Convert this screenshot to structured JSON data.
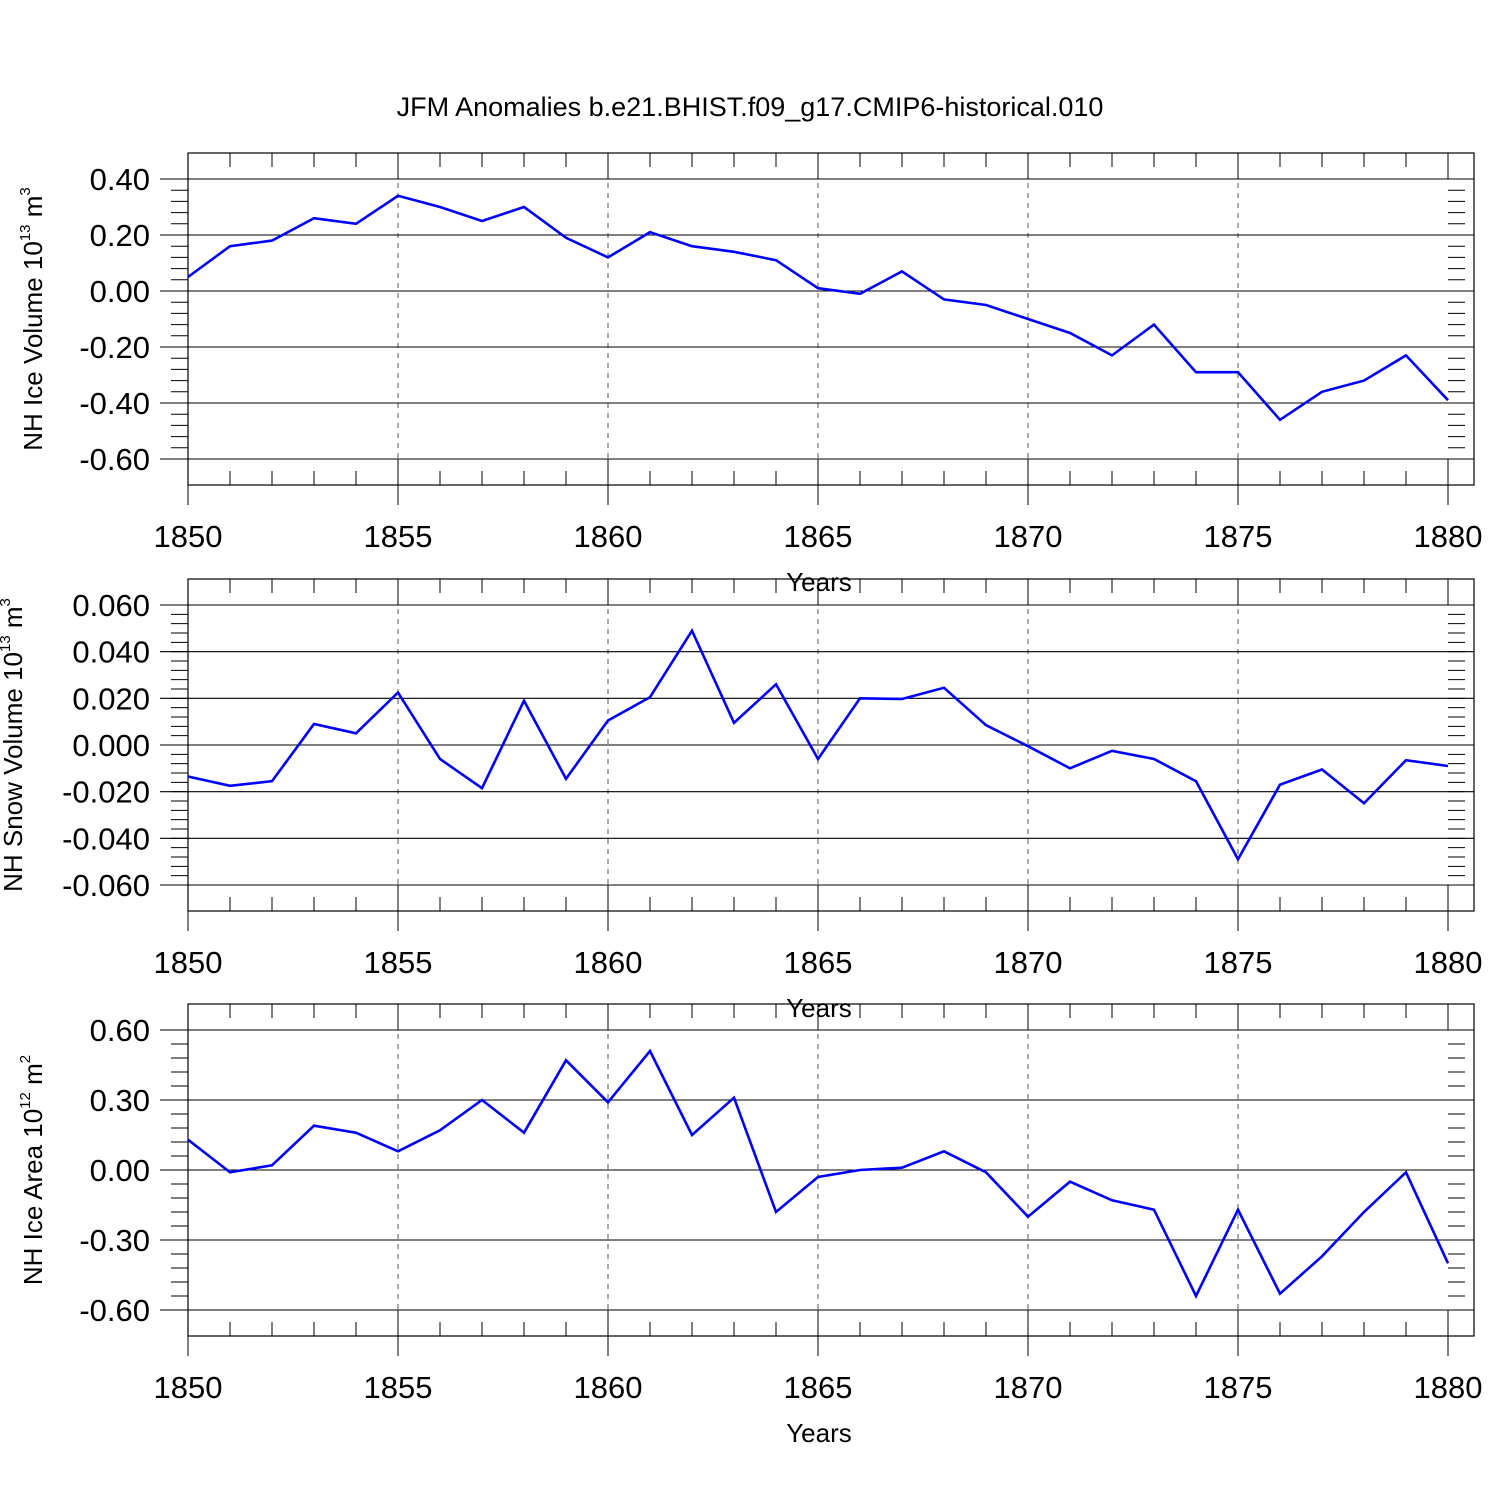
{
  "title": "JFM Anomalies b.e21.BHIST.f09_g17.CMIP6-historical.010",
  "colors": {
    "series": "#0000ff",
    "axis": "#000000",
    "grid": "#555555"
  },
  "chart_data": [
    {
      "type": "line",
      "ylabel": {
        "base": "NH Ice Volume 10",
        "exp": "13",
        "unit": " m",
        "unit_exp": "3"
      },
      "xlabel": "Years",
      "xlim": [
        1850,
        1880
      ],
      "ylim": [
        -0.6,
        0.4
      ],
      "xticks": [
        1850,
        1855,
        1860,
        1865,
        1870,
        1875,
        1880
      ],
      "xtick_labels": [
        "1850",
        "1855",
        "1860",
        "1865",
        "1870",
        "1875",
        "1880"
      ],
      "yticks": [
        0.4,
        0.2,
        0.0,
        -0.2,
        -0.4,
        -0.6
      ],
      "ytick_labels": [
        "0.40",
        "0.20",
        "0.00",
        "-0.20",
        "-0.40",
        "-0.60"
      ],
      "grid": "vertical dashed at labeled years",
      "x": [
        1850,
        1851,
        1852,
        1853,
        1854,
        1855,
        1856,
        1857,
        1858,
        1859,
        1860,
        1861,
        1862,
        1863,
        1864,
        1865,
        1866,
        1867,
        1868,
        1869,
        1870,
        1871,
        1872,
        1873,
        1874,
        1875,
        1876,
        1877,
        1878,
        1879,
        1880
      ],
      "y": [
        0.05,
        0.16,
        0.18,
        0.26,
        0.24,
        0.34,
        0.3,
        0.25,
        0.3,
        0.19,
        0.12,
        0.21,
        0.16,
        0.14,
        0.11,
        0.01,
        -0.01,
        0.07,
        -0.03,
        -0.05,
        -0.1,
        -0.15,
        -0.23,
        -0.12,
        -0.29,
        -0.29,
        -0.46,
        -0.36,
        -0.32,
        -0.23,
        -0.39
      ]
    },
    {
      "type": "line",
      "ylabel": {
        "base": "NH Snow Volume 10",
        "exp": "13",
        "unit": " m",
        "unit_exp": "3"
      },
      "xlabel": "Years",
      "xlim": [
        1850,
        1880
      ],
      "ylim": [
        -0.06,
        0.06
      ],
      "xticks": [
        1850,
        1855,
        1860,
        1865,
        1870,
        1875,
        1880
      ],
      "xtick_labels": [
        "1850",
        "1855",
        "1860",
        "1865",
        "1870",
        "1875",
        "1880"
      ],
      "yticks": [
        0.06,
        0.04,
        0.02,
        0.0,
        -0.02,
        -0.04,
        -0.06
      ],
      "ytick_labels": [
        "0.060",
        "0.040",
        "0.020",
        "0.000",
        "-0.020",
        "-0.040",
        "-0.060"
      ],
      "grid": "vertical dashed at labeled years",
      "x": [
        1850,
        1851,
        1852,
        1853,
        1854,
        1855,
        1856,
        1857,
        1858,
        1859,
        1860,
        1861,
        1862,
        1863,
        1864,
        1865,
        1866,
        1867,
        1868,
        1869,
        1870,
        1871,
        1872,
        1873,
        1874,
        1875,
        1876,
        1877,
        1878,
        1879,
        1880
      ],
      "y": [
        -0.0135,
        -0.0175,
        -0.0155,
        0.009,
        0.005,
        0.0225,
        -0.006,
        -0.0185,
        0.019,
        -0.0145,
        0.0105,
        0.0205,
        0.049,
        0.0095,
        0.026,
        -0.006,
        0.02,
        0.0197,
        0.0245,
        0.0085,
        -0.0005,
        -0.01,
        -0.0025,
        -0.006,
        -0.0155,
        -0.049,
        -0.017,
        -0.0105,
        -0.025,
        -0.0065,
        -0.009
      ]
    },
    {
      "type": "line",
      "ylabel": {
        "base": "NH Ice Area 10",
        "exp": "12",
        "unit": " m",
        "unit_exp": "2"
      },
      "xlabel": "Years",
      "xlim": [
        1850,
        1880
      ],
      "ylim": [
        -0.6,
        0.6
      ],
      "xticks": [
        1850,
        1855,
        1860,
        1865,
        1870,
        1875,
        1880
      ],
      "xtick_labels": [
        "1850",
        "1855",
        "1860",
        "1865",
        "1870",
        "1875",
        "1880"
      ],
      "yticks": [
        0.6,
        0.3,
        0.0,
        -0.3,
        -0.6
      ],
      "ytick_labels": [
        "0.60",
        "0.30",
        "0.00",
        "-0.30",
        "-0.60"
      ],
      "grid": "vertical dashed at labeled years",
      "x": [
        1850,
        1851,
        1852,
        1853,
        1854,
        1855,
        1856,
        1857,
        1858,
        1859,
        1860,
        1861,
        1862,
        1863,
        1864,
        1865,
        1866,
        1867,
        1868,
        1869,
        1870,
        1871,
        1872,
        1873,
        1874,
        1875,
        1876,
        1877,
        1878,
        1879,
        1880
      ],
      "y": [
        0.13,
        -0.01,
        0.02,
        0.19,
        0.16,
        0.08,
        0.17,
        0.3,
        0.16,
        0.47,
        0.29,
        0.51,
        0.15,
        0.31,
        -0.18,
        -0.03,
        0.0,
        0.01,
        0.08,
        -0.01,
        -0.2,
        -0.05,
        -0.13,
        -0.17,
        -0.54,
        -0.17,
        -0.53,
        -0.37,
        -0.18,
        -0.01,
        -0.4
      ]
    }
  ]
}
